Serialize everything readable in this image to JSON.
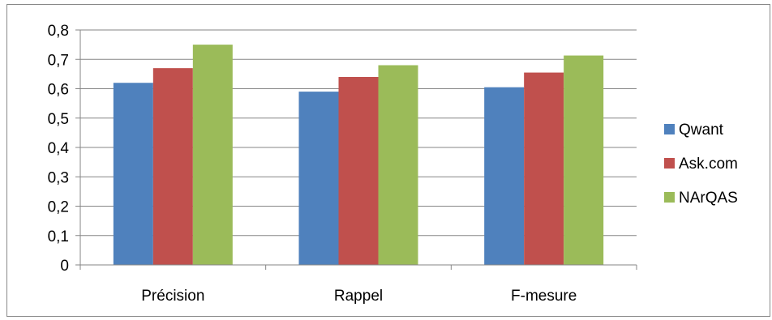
{
  "chart_data": {
    "type": "bar",
    "title": "",
    "xlabel": "",
    "ylabel": "",
    "categories": [
      "Précision",
      "Rappel",
      "F-mesure"
    ],
    "series": [
      {
        "name": "Qwant",
        "values": [
          0.62,
          0.59,
          0.605
        ],
        "color": "#4F81BD"
      },
      {
        "name": "Ask.com",
        "values": [
          0.67,
          0.64,
          0.655
        ],
        "color": "#C0504D"
      },
      {
        "name": "NArQAS",
        "values": [
          0.75,
          0.68,
          0.713
        ],
        "color": "#9BBB59"
      }
    ],
    "ylim": [
      0,
      0.8
    ],
    "yticks": [
      0,
      0.1,
      0.2,
      0.3,
      0.4,
      0.5,
      0.6,
      0.7,
      0.8
    ],
    "ytick_labels": [
      "0",
      "0,1",
      "0,2",
      "0,3",
      "0,4",
      "0,5",
      "0,6",
      "0,7",
      "0,8"
    ],
    "grid": true,
    "legend_position": "right"
  }
}
